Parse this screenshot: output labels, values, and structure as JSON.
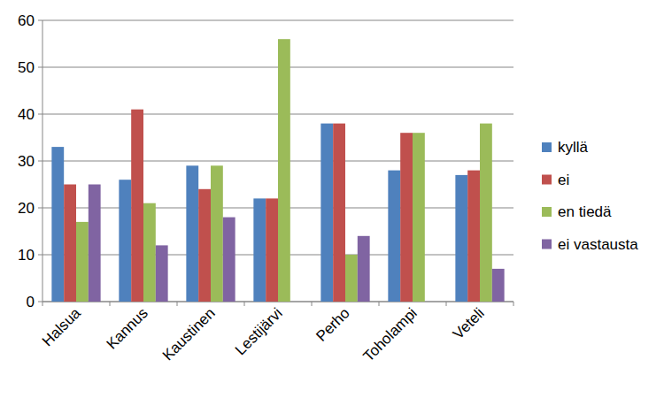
{
  "chart_data": {
    "type": "bar",
    "categories": [
      "Halsua",
      "Kannus",
      "Kaustinen",
      "Lestijärvi",
      "Perho",
      "Toholampi",
      "Veteli"
    ],
    "series": [
      {
        "name": "kyllä",
        "color": "#4f81bd",
        "values": [
          33,
          26,
          29,
          22,
          38,
          28,
          27
        ]
      },
      {
        "name": "ei",
        "color": "#c0504d",
        "values": [
          25,
          41,
          24,
          22,
          38,
          36,
          28
        ]
      },
      {
        "name": "en tiedä",
        "color": "#9bbb59",
        "values": [
          17,
          21,
          29,
          56,
          10,
          36,
          38
        ]
      },
      {
        "name": "ei vastausta",
        "color": "#8064a2",
        "values": [
          25,
          12,
          18,
          0,
          14,
          0,
          7
        ]
      }
    ],
    "ylim": [
      0,
      60
    ],
    "yticks": [
      0,
      10,
      20,
      30,
      40,
      50,
      60
    ],
    "grid": true,
    "legend": "right"
  }
}
